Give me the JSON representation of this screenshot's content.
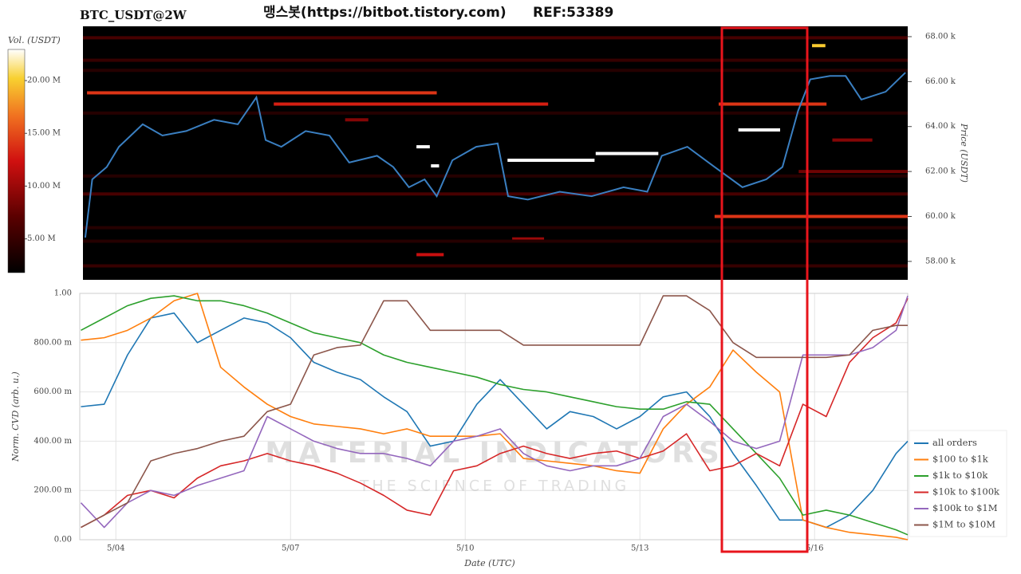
{
  "header": {
    "source": "맹스봇(https://bitbot.tistory.com)",
    "ref": "REF:53389"
  },
  "chart_data": [
    {
      "type": "heatmap",
      "title": "BTC_USDT@2W",
      "ylabel": "Price (USDT)",
      "xlim": [
        3.38,
        17.6
      ],
      "ylim": [
        57180,
        68460
      ],
      "yticks": [
        {
          "value": 58000,
          "label": "58.00 k"
        },
        {
          "value": 60000,
          "label": "60.00 k"
        },
        {
          "value": 62000,
          "label": "62.00 k"
        },
        {
          "value": 64000,
          "label": "64.00 k"
        },
        {
          "value": 66000,
          "label": "66.00 k"
        },
        {
          "value": 68000,
          "label": "68.00 k"
        }
      ],
      "x": [
        3.42,
        3.54,
        3.79,
        4.0,
        4.41,
        4.75,
        5.16,
        5.64,
        6.05,
        6.37,
        6.53,
        6.8,
        7.22,
        7.63,
        7.97,
        8.45,
        8.73,
        9.0,
        9.27,
        9.48,
        9.75,
        10.16,
        10.53,
        10.71,
        11.05,
        11.6,
        12.15,
        12.7,
        13.11,
        13.36,
        13.8,
        14.27,
        14.75,
        15.16,
        15.44,
        15.71,
        15.92,
        16.26,
        16.53,
        16.8,
        17.22,
        17.56
      ],
      "values": [
        59060,
        61650,
        62200,
        63100,
        64100,
        63600,
        63800,
        64300,
        64100,
        65300,
        63400,
        63100,
        63800,
        63600,
        62400,
        62700,
        62200,
        61300,
        61650,
        60900,
        62500,
        63100,
        63250,
        60900,
        60750,
        61100,
        60900,
        61300,
        61100,
        62700,
        63100,
        62200,
        61300,
        61650,
        62200,
        64700,
        66100,
        66250,
        66250,
        65200,
        65550,
        66400
      ],
      "color": "#3a7fc1",
      "bands": {
        "price": [
          67950,
          66950,
          66500,
          65500,
          65000,
          65000,
          64600,
          64300,
          63850,
          63400,
          63100,
          62800,
          62500,
          62250,
          62000,
          61800,
          61000,
          60000,
          59500,
          59000,
          58900,
          58300,
          57800,
          67600
        ],
        "start": [
          3.38,
          3.38,
          3.38,
          3.45,
          6.67,
          14.34,
          3.38,
          7.9,
          14.68,
          16.3,
          9.13,
          12.22,
          10.7,
          9.38,
          15.72,
          3.38,
          3.38,
          14.27,
          3.38,
          10.78,
          3.38,
          9.13,
          3.38,
          15.95
        ],
        "end": [
          17.6,
          17.6,
          17.6,
          9.48,
          11.4,
          16.2,
          17.6,
          8.3,
          15.4,
          16.99,
          9.36,
          13.3,
          12.2,
          9.52,
          17.6,
          17.6,
          17.6,
          17.6,
          17.6,
          11.33,
          17.6,
          9.6,
          17.6,
          16.18
        ],
        "volume": [
          6000000,
          5000000,
          4000000,
          14000000,
          13000000,
          14000000,
          4000000,
          9000000,
          22950000,
          9000000,
          22950000,
          22950000,
          22950000,
          22950000,
          8000000,
          4000000,
          6000000,
          14000000,
          4000000,
          10000000,
          4000000,
          12000000,
          5000000,
          20000000
        ]
      },
      "colorbar": {
        "label": "Vol. (USDT)",
        "lim": [
          1800000,
          22950000
        ],
        "ticks": [
          {
            "value": 5000000,
            "label": "5.00 M"
          },
          {
            "value": 10000000,
            "label": "10.00 M"
          },
          {
            "value": 15000000,
            "label": "15.00 M"
          },
          {
            "value": 20000000,
            "label": "20.00 M"
          }
        ]
      }
    },
    {
      "type": "line",
      "xlabel": "Date (UTC)",
      "ylabel": "Norm. CVD (arb. u.)",
      "annotations": [
        "MATERIAL INDICATORS",
        "THE SCIENCE OF TRADING"
      ],
      "xlim": [
        3.38,
        17.6
      ],
      "ylim": [
        0,
        1
      ],
      "grid": true,
      "legend": "right",
      "xticks": [
        {
          "value": 4,
          "label": "5/04"
        },
        {
          "value": 7,
          "label": "5/07"
        },
        {
          "value": 10,
          "label": "5/10"
        },
        {
          "value": 13,
          "label": "5/13"
        },
        {
          "value": 16,
          "label": "5/16"
        }
      ],
      "yticks": [
        {
          "value": 0,
          "label": "0.00"
        },
        {
          "value": 0.2,
          "label": "200.00 m"
        },
        {
          "value": 0.4,
          "label": "400.00 m"
        },
        {
          "value": 0.6,
          "label": "600.00 m"
        },
        {
          "value": 0.8,
          "label": "800.00 m"
        },
        {
          "value": 1,
          "label": "1.00"
        }
      ],
      "x": [
        3.4,
        3.8,
        4.2,
        4.6,
        5.0,
        5.4,
        5.8,
        6.2,
        6.6,
        7.0,
        7.4,
        7.8,
        8.2,
        8.6,
        9.0,
        9.4,
        9.8,
        10.2,
        10.6,
        11.0,
        11.4,
        11.8,
        12.2,
        12.6,
        13.0,
        13.4,
        13.8,
        14.2,
        14.6,
        15.0,
        15.4,
        15.8,
        16.2,
        16.6,
        17.0,
        17.4,
        17.6
      ],
      "series": [
        {
          "name": "all orders",
          "color": "#1f77b4",
          "values": [
            0.54,
            0.55,
            0.75,
            0.9,
            0.92,
            0.8,
            0.85,
            0.9,
            0.88,
            0.82,
            0.72,
            0.68,
            0.65,
            0.58,
            0.52,
            0.38,
            0.4,
            0.55,
            0.65,
            0.55,
            0.45,
            0.52,
            0.5,
            0.45,
            0.5,
            0.58,
            0.6,
            0.5,
            0.35,
            0.22,
            0.08,
            0.08,
            0.05,
            0.1,
            0.2,
            0.35,
            0.4
          ]
        },
        {
          "name": "$100 to $1k",
          "color": "#ff7f0e",
          "values": [
            0.81,
            0.82,
            0.85,
            0.9,
            0.97,
            1.0,
            0.7,
            0.62,
            0.55,
            0.5,
            0.47,
            0.46,
            0.45,
            0.43,
            0.45,
            0.42,
            0.42,
            0.42,
            0.43,
            0.33,
            0.32,
            0.31,
            0.3,
            0.28,
            0.27,
            0.45,
            0.55,
            0.62,
            0.77,
            0.68,
            0.6,
            0.08,
            0.05,
            0.03,
            0.02,
            0.01,
            0.0
          ]
        },
        {
          "name": "$1k to $10k",
          "color": "#2ca02c",
          "values": [
            0.85,
            0.9,
            0.95,
            0.98,
            0.99,
            0.97,
            0.97,
            0.95,
            0.92,
            0.88,
            0.84,
            0.82,
            0.8,
            0.75,
            0.72,
            0.7,
            0.68,
            0.66,
            0.63,
            0.61,
            0.6,
            0.58,
            0.56,
            0.54,
            0.53,
            0.53,
            0.56,
            0.55,
            0.45,
            0.35,
            0.25,
            0.1,
            0.12,
            0.1,
            0.07,
            0.04,
            0.02
          ]
        },
        {
          "name": "$10k to $100k",
          "color": "#d62728",
          "values": [
            0.05,
            0.1,
            0.18,
            0.2,
            0.17,
            0.25,
            0.3,
            0.32,
            0.35,
            0.32,
            0.3,
            0.27,
            0.23,
            0.18,
            0.12,
            0.1,
            0.28,
            0.3,
            0.35,
            0.38,
            0.35,
            0.33,
            0.35,
            0.36,
            0.33,
            0.36,
            0.43,
            0.28,
            0.3,
            0.35,
            0.3,
            0.55,
            0.5,
            0.72,
            0.82,
            0.88,
            0.98
          ]
        },
        {
          "name": "$100k to $1M",
          "color": "#9467bd",
          "values": [
            0.15,
            0.05,
            0.15,
            0.2,
            0.18,
            0.22,
            0.25,
            0.28,
            0.5,
            0.45,
            0.4,
            0.37,
            0.35,
            0.35,
            0.33,
            0.3,
            0.4,
            0.42,
            0.45,
            0.35,
            0.3,
            0.28,
            0.3,
            0.3,
            0.33,
            0.5,
            0.55,
            0.48,
            0.4,
            0.37,
            0.4,
            0.75,
            0.75,
            0.75,
            0.78,
            0.85,
            0.99
          ]
        },
        {
          "name": "$1M to $10M",
          "color": "#8c564b",
          "values": [
            0.05,
            0.1,
            0.15,
            0.32,
            0.35,
            0.37,
            0.4,
            0.42,
            0.52,
            0.55,
            0.75,
            0.78,
            0.79,
            0.97,
            0.97,
            0.85,
            0.85,
            0.85,
            0.85,
            0.79,
            0.79,
            0.79,
            0.79,
            0.79,
            0.79,
            0.99,
            0.99,
            0.93,
            0.8,
            0.74,
            0.74,
            0.74,
            0.74,
            0.75,
            0.85,
            0.87,
            0.87
          ]
        }
      ]
    }
  ]
}
